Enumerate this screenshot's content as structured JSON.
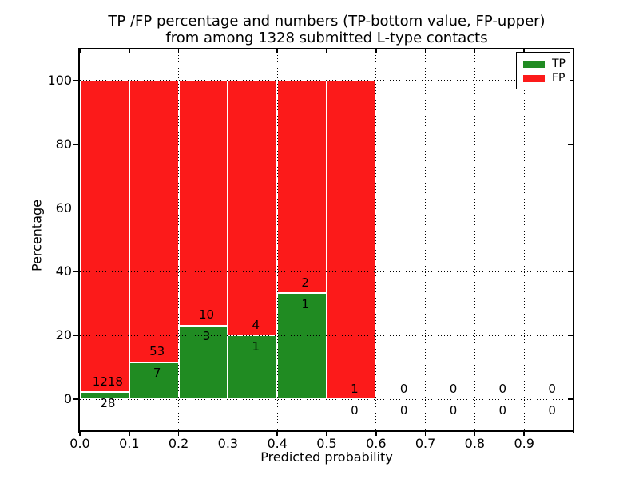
{
  "chart_data": {
    "type": "bar",
    "stacked": true,
    "normalized_to_percent": true,
    "title_line1": "TP /FP percentage and numbers (TP-bottom value, FP-upper)",
    "title_line2": "from among 1328 submitted L-type contacts",
    "xlabel": "Predicted probability",
    "ylabel": "Percentage",
    "xlim": [
      0.0,
      1.0
    ],
    "ylim": [
      -10,
      110
    ],
    "xtick_values": [
      0.0,
      0.1,
      0.2,
      0.3,
      0.4,
      0.5,
      0.6,
      0.7,
      0.8,
      0.9
    ],
    "xtick_labels": [
      "0.0",
      "0.1",
      "0.2",
      "0.3",
      "0.4",
      "0.5",
      "0.6",
      "0.7",
      "0.8",
      "0.9"
    ],
    "ytick_values": [
      0,
      20,
      40,
      60,
      80,
      100
    ],
    "ytick_labels": [
      "0",
      "20",
      "40",
      "60",
      "80",
      "100"
    ],
    "grid": {
      "style": "dotted",
      "color": "#000000"
    },
    "legend": {
      "position": "upper right",
      "entries": [
        {
          "name": "TP",
          "color_key": "tp"
        },
        {
          "name": "FP",
          "color_key": "fp"
        }
      ]
    },
    "total_contacts": 1328,
    "bins": [
      {
        "x_start": 0.0,
        "x_end": 0.1,
        "tp_count": 28,
        "fp_count": 1218
      },
      {
        "x_start": 0.1,
        "x_end": 0.2,
        "tp_count": 7,
        "fp_count": 53
      },
      {
        "x_start": 0.2,
        "x_end": 0.3,
        "tp_count": 3,
        "fp_count": 10
      },
      {
        "x_start": 0.3,
        "x_end": 0.4,
        "tp_count": 1,
        "fp_count": 4
      },
      {
        "x_start": 0.4,
        "x_end": 0.5,
        "tp_count": 1,
        "fp_count": 2
      },
      {
        "x_start": 0.5,
        "x_end": 0.6,
        "tp_count": 0,
        "fp_count": 1
      },
      {
        "x_start": 0.6,
        "x_end": 0.7,
        "tp_count": 0,
        "fp_count": 0
      },
      {
        "x_start": 0.7,
        "x_end": 0.8,
        "tp_count": 0,
        "fp_count": 0
      },
      {
        "x_start": 0.8,
        "x_end": 0.9,
        "tp_count": 0,
        "fp_count": 0
      },
      {
        "x_start": 0.9,
        "x_end": 1.0,
        "tp_count": 0,
        "fp_count": 0
      }
    ]
  },
  "colors": {
    "tp": "#208b22",
    "fp": "#fc1a1a",
    "bar_edge": "#ffffff",
    "grid": "#000000",
    "spine": "#000000",
    "text": "#000000",
    "background": "#ffffff"
  }
}
